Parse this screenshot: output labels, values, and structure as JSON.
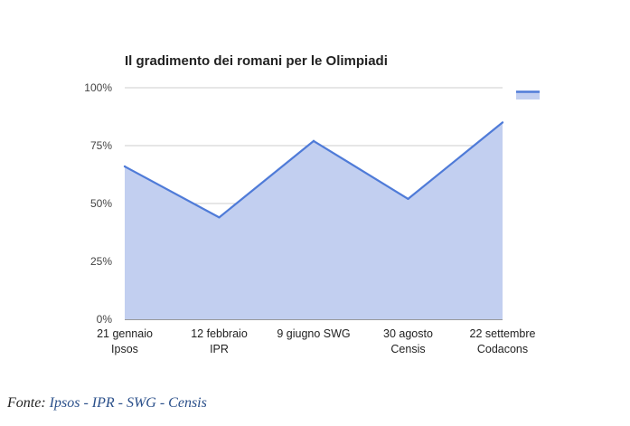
{
  "chart_data": {
    "type": "area",
    "title": "Il gradimento dei romani per le Olimpiadi",
    "xlabel": "",
    "ylabel": "",
    "categories": [
      [
        "21 gennaio",
        "Ipsos"
      ],
      [
        "12 febbraio",
        "IPR"
      ],
      [
        "9 giugno SWG"
      ],
      [
        "30 agosto",
        "Censis"
      ],
      [
        "22 settembre",
        "Codacons"
      ]
    ],
    "series": [
      {
        "values": [
          66,
          44,
          77,
          52,
          85
        ]
      }
    ],
    "ylim": [
      0,
      100
    ],
    "yticks": [
      {
        "value": 0,
        "label": "0%"
      },
      {
        "value": 25,
        "label": "25%"
      },
      {
        "value": 50,
        "label": "50%"
      },
      {
        "value": 75,
        "label": "75%"
      },
      {
        "value": 100,
        "label": "100%"
      }
    ],
    "grid": true,
    "legend": "top-right",
    "colors": {
      "line": "#4f7bd8",
      "fill": "#c2cff0",
      "grid": "#cccccc"
    }
  },
  "caption": {
    "prefix": "Fonte: ",
    "sources": "Ipsos - IPR - SWG - Censis"
  }
}
